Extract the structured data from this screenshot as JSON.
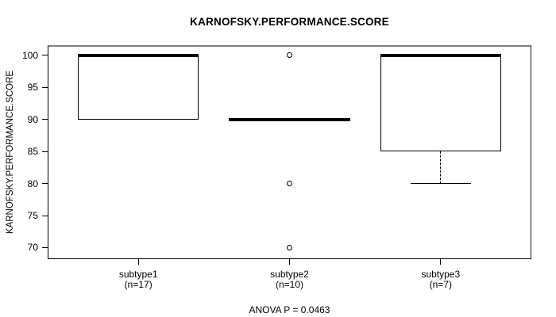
{
  "figure": {
    "title": "KARNOFSKY.PERFORMANCE.SCORE",
    "footer": "ANOVA P = 0.0463"
  },
  "chart_data": {
    "type": "boxplot",
    "title": "KARNOFSKY.PERFORMANCE.SCORE",
    "xlabel": "",
    "ylabel": "KARNOFSKY.PERFORMANCE.SCORE",
    "footer_annotation": "ANOVA P = 0.0463",
    "grid": false,
    "legend": "none",
    "ylim": [
      68.2,
      101.6
    ],
    "xlim": [
      0.4,
      3.6
    ],
    "yticks": [
      70,
      75,
      80,
      85,
      90,
      95,
      100
    ],
    "groups": [
      {
        "x": 1,
        "label": "subtype1",
        "sublabel": "(n=17)",
        "n": 17,
        "q1": 90,
        "median": 100,
        "q3": 100,
        "whisker_low": 90,
        "whisker_high": 100,
        "outliers": []
      },
      {
        "x": 2,
        "label": "subtype2",
        "sublabel": "(n=10)",
        "n": 10,
        "q1": 90,
        "median": 90,
        "q3": 90,
        "whisker_low": 90,
        "whisker_high": 90,
        "outliers": [
          100,
          80,
          70
        ]
      },
      {
        "x": 3,
        "label": "subtype3",
        "sublabel": "(n=7)",
        "n": 7,
        "q1": 85,
        "median": 100,
        "q3": 100,
        "whisker_low": 80,
        "whisker_high": 100,
        "outliers": []
      }
    ],
    "colors": {
      "line": "#000000",
      "median": "#000000",
      "frame_top": "#808080",
      "frame": "#000000",
      "background": "#ffffff",
      "text": "#000000"
    }
  }
}
